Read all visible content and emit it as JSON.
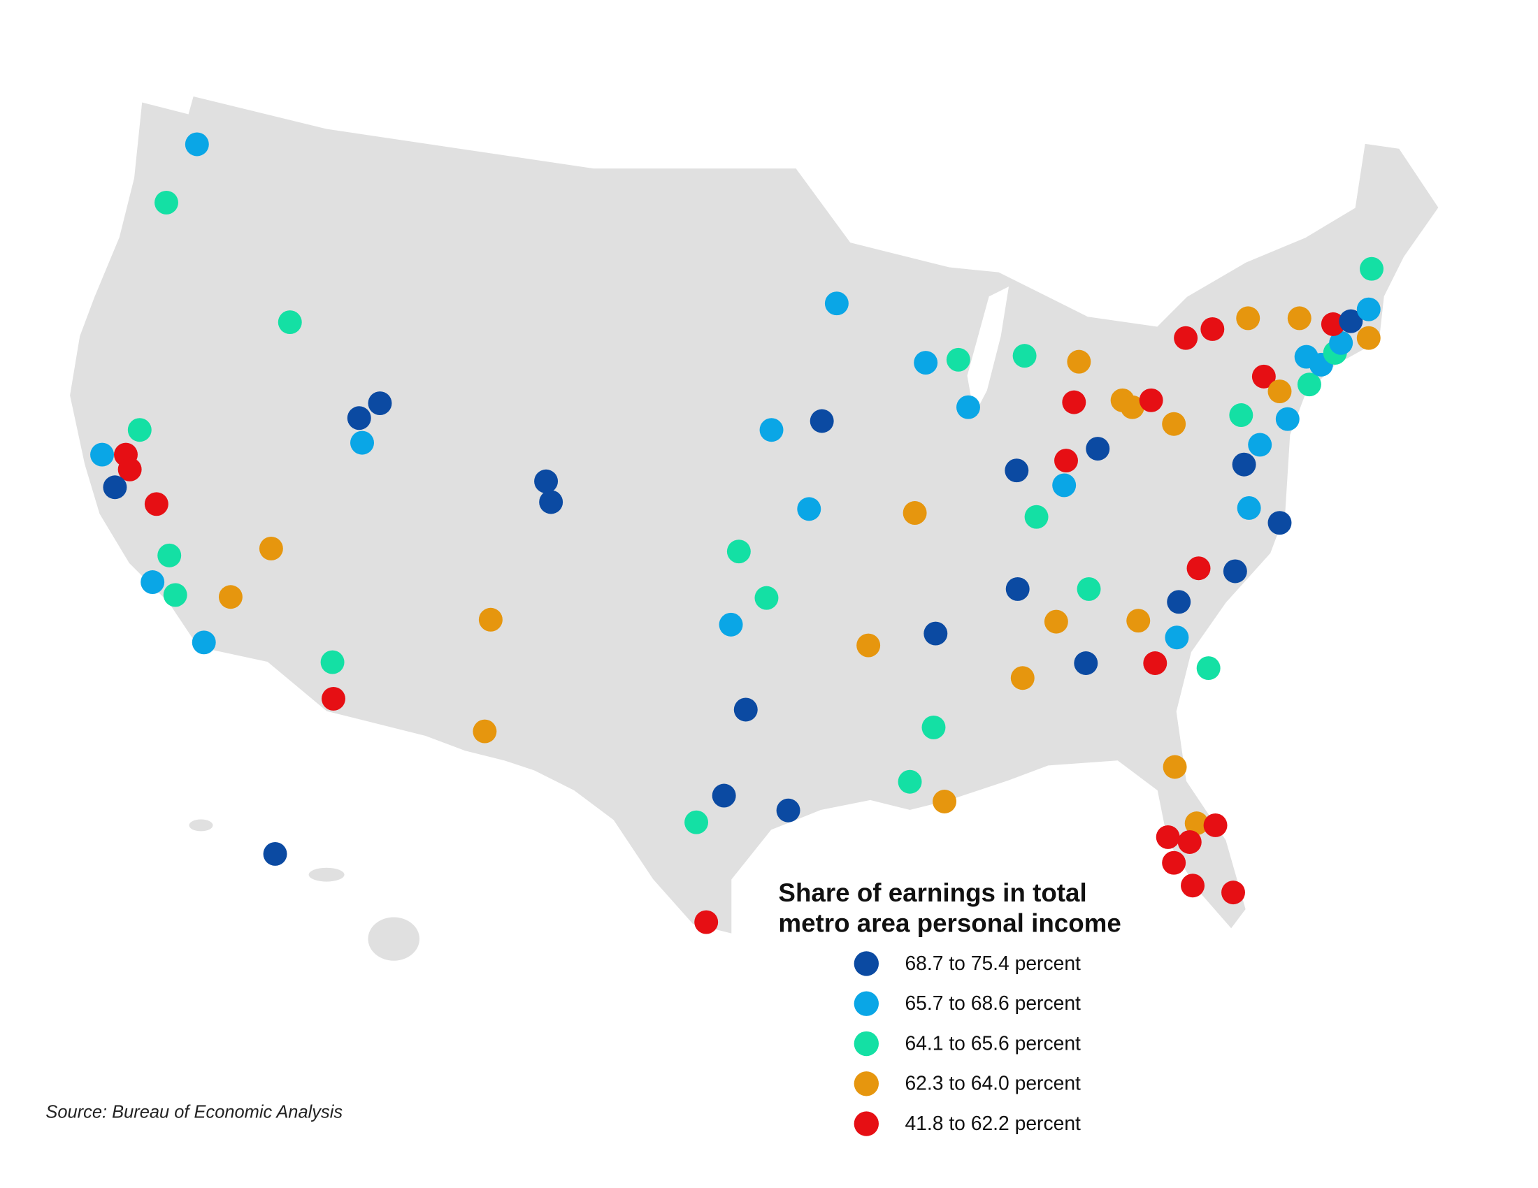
{
  "legend": {
    "title": [
      "Share of earnings in total",
      "metro area personal income"
    ],
    "items": [
      {
        "label": "68.7 to 75.4 percent",
        "color": "#0b4aa2"
      },
      {
        "label": "65.7 to 68.6 percent",
        "color": "#0aa6e6"
      },
      {
        "label": "64.1 to 65.6 percent",
        "color": "#14e0a4"
      },
      {
        "label": "62.3 to 64.0 percent",
        "color": "#e6960e"
      },
      {
        "label": "41.8 to 62.2 percent",
        "color": "#e60f14"
      }
    ]
  },
  "source": "Source: Bureau of Economic Analysis"
}
